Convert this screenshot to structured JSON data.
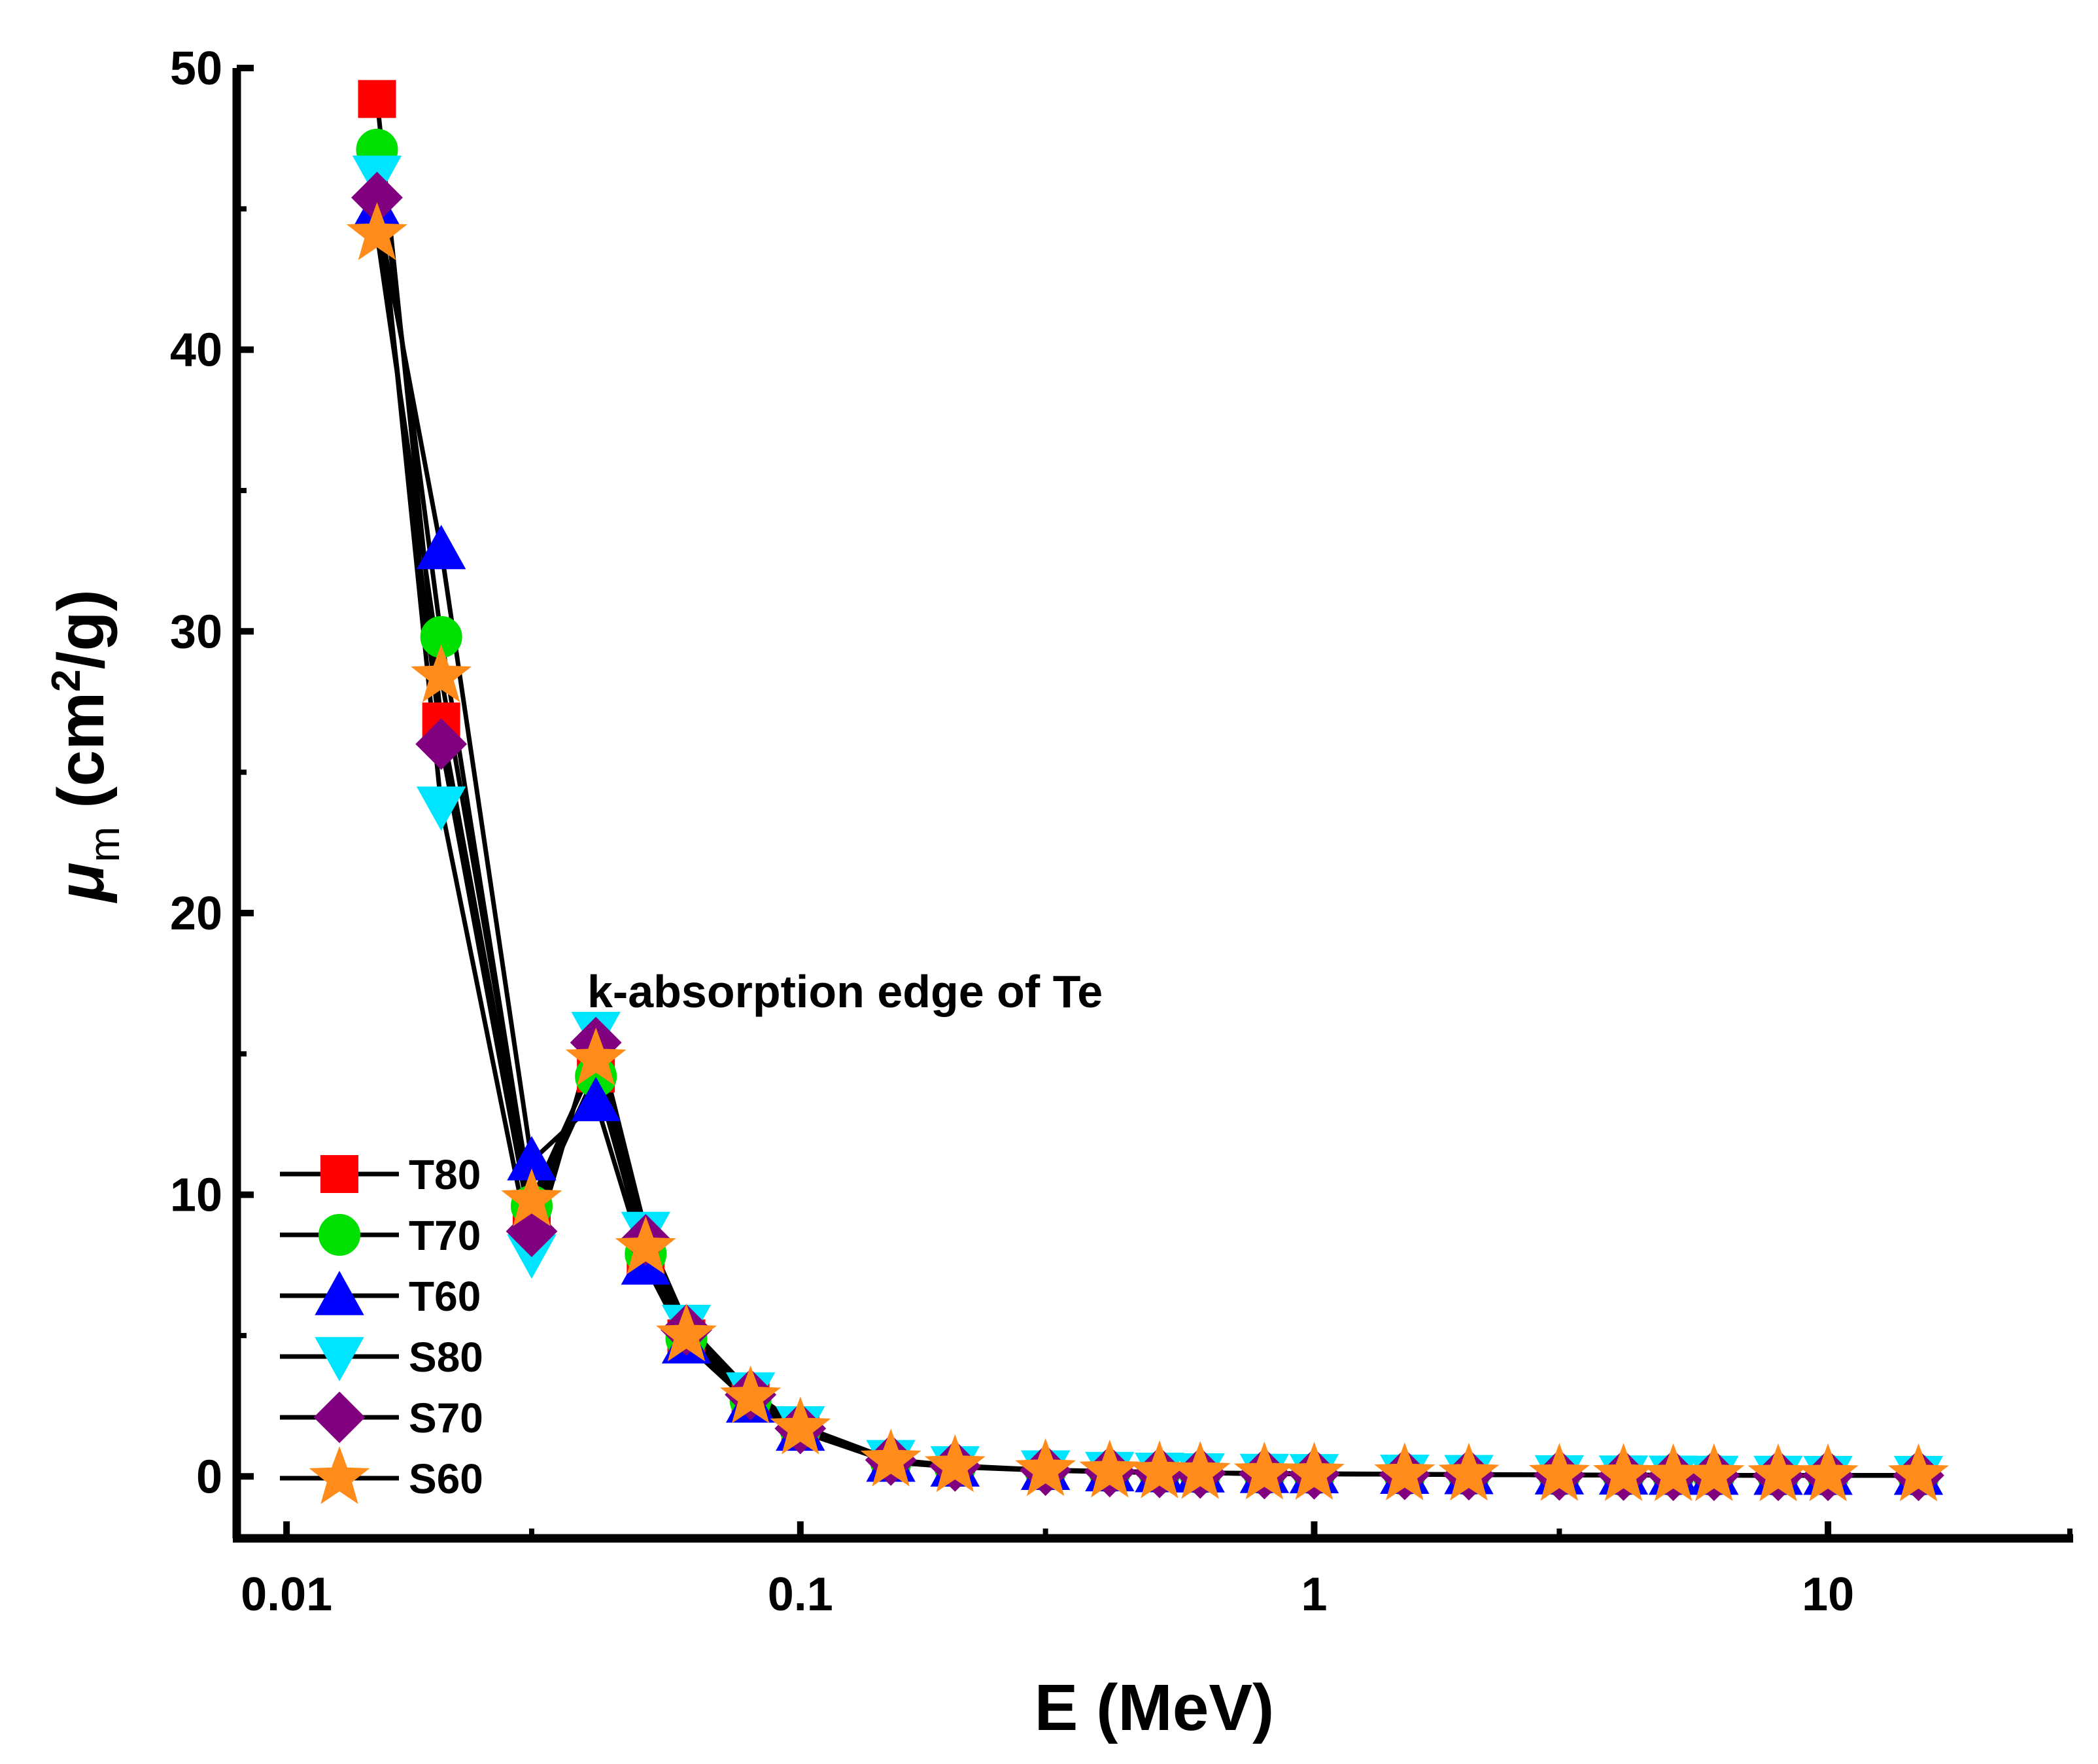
{
  "chart_data": {
    "type": "line",
    "xlabel": "E (MeV)",
    "ylabel_symbol": "μ",
    "ylabel_sub": "m",
    "ylabel_unit_pre": " (cm",
    "ylabel_unit_sup": "2",
    "ylabel_unit_post": "/g)",
    "x_scale": "log",
    "xlim": [
      0.008,
      30
    ],
    "ylim": [
      -2.2,
      50
    ],
    "x_ticks": [
      0.01,
      0.1,
      1,
      10
    ],
    "x_tick_labels": [
      "0.01",
      "0.1",
      "1",
      "10"
    ],
    "y_ticks": [
      0,
      10,
      20,
      30,
      40,
      50
    ],
    "y_tick_labels": [
      "0",
      "10",
      "20",
      "30",
      "40",
      "50"
    ],
    "grid": false,
    "legend_position": "bottom-left",
    "annotation": "k-absorption edge of Te",
    "x": [
      0.015,
      0.02,
      0.03,
      0.04,
      0.05,
      0.06,
      0.08,
      0.1,
      0.15,
      0.2,
      0.3,
      0.4,
      0.5,
      0.6,
      0.8,
      1,
      1.5,
      2,
      3,
      4,
      5,
      6,
      8,
      10,
      15
    ],
    "series": [
      {
        "name": "T80",
        "marker": "square",
        "color": "#ff0000",
        "values": [
          48.9,
          26.8,
          9.3,
          14.3,
          7.8,
          4.9,
          2.7,
          1.7,
          0.55,
          0.35,
          0.22,
          0.17,
          0.14,
          0.12,
          0.1,
          0.09,
          0.07,
          0.06,
          0.05,
          0.045,
          0.04,
          0.04,
          0.035,
          0.035,
          0.035
        ]
      },
      {
        "name": "T70",
        "marker": "circle",
        "color": "#00e000",
        "values": [
          47.1,
          29.8,
          9.6,
          14.2,
          7.9,
          4.9,
          2.7,
          1.7,
          0.55,
          0.35,
          0.22,
          0.17,
          0.14,
          0.12,
          0.1,
          0.09,
          0.07,
          0.06,
          0.05,
          0.045,
          0.04,
          0.04,
          0.035,
          0.035,
          0.035
        ]
      },
      {
        "name": "T60",
        "marker": "triangle-up",
        "color": "#0000ff",
        "values": [
          45.0,
          32.9,
          11.2,
          13.3,
          7.5,
          4.7,
          2.6,
          1.6,
          0.5,
          0.33,
          0.21,
          0.16,
          0.13,
          0.12,
          0.1,
          0.09,
          0.07,
          0.06,
          0.05,
          0.045,
          0.04,
          0.04,
          0.035,
          0.035,
          0.035
        ]
      },
      {
        "name": "S80",
        "marker": "triangle-down",
        "color": "#00e5ff",
        "values": [
          46.2,
          23.8,
          7.9,
          15.8,
          8.7,
          5.4,
          3.0,
          1.8,
          0.6,
          0.38,
          0.23,
          0.18,
          0.15,
          0.13,
          0.11,
          0.1,
          0.08,
          0.07,
          0.06,
          0.05,
          0.045,
          0.04,
          0.04,
          0.035,
          0.035
        ]
      },
      {
        "name": "S70",
        "marker": "diamond",
        "color": "#800080",
        "values": [
          45.4,
          26.0,
          8.7,
          15.4,
          8.4,
          5.2,
          2.9,
          1.7,
          0.58,
          0.37,
          0.22,
          0.17,
          0.14,
          0.12,
          0.1,
          0.09,
          0.07,
          0.06,
          0.05,
          0.045,
          0.04,
          0.04,
          0.035,
          0.035,
          0.035
        ]
      },
      {
        "name": "S60",
        "marker": "star",
        "color": "#ff8c1a",
        "values": [
          44.1,
          28.4,
          9.8,
          14.8,
          8.1,
          5.0,
          2.8,
          1.7,
          0.56,
          0.36,
          0.22,
          0.17,
          0.14,
          0.12,
          0.1,
          0.09,
          0.07,
          0.06,
          0.05,
          0.045,
          0.04,
          0.04,
          0.035,
          0.035,
          0.035
        ]
      }
    ]
  }
}
